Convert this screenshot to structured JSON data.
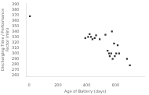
{
  "chart_data": {
    "type": "scatter",
    "xlabel": "Age of Battery (days)",
    "ylabel": "Discharging Time / Performance\nFactor (min)",
    "x": [
      5,
      390,
      410,
      420,
      430,
      440,
      455,
      465,
      490,
      530,
      545,
      555,
      560,
      570,
      575,
      580,
      590,
      595,
      605,
      615,
      625,
      680,
      700
    ],
    "values": [
      368,
      328,
      330,
      335,
      330,
      326,
      328,
      333,
      326,
      334,
      305,
      300,
      295,
      300,
      340,
      290,
      318,
      295,
      300,
      315,
      300,
      290,
      278
    ],
    "color": "#333333",
    "marker": "square",
    "xlim": [
      -20,
      800
    ],
    "ylim": [
      258,
      392
    ],
    "xticks": [
      0,
      200,
      400,
      600
    ],
    "yticks": [
      260,
      270,
      280,
      290,
      300,
      310,
      320,
      330,
      340,
      350,
      360,
      370,
      380,
      390
    ],
    "grid": false
  }
}
